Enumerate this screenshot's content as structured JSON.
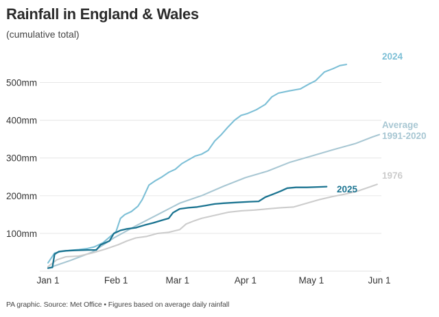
{
  "chart_data": {
    "type": "line",
    "title": "Rainfall in England & Wales",
    "subtitle": "(cumulative total)",
    "source": "PA graphic. Source: Met Office • Figures based on average daily rainfall",
    "x_ticks": [
      "Jan 1",
      "Feb 1",
      "Mar 1",
      "Apr 1",
      "May 1",
      "Jun 1"
    ],
    "y_ticks": [
      "100mm",
      "200mm",
      "300mm",
      "400mm",
      "500mm"
    ],
    "y_tick_values": [
      100,
      200,
      300,
      400,
      500
    ],
    "xlim_days": [
      0,
      151
    ],
    "ylim": [
      0,
      550
    ],
    "grid": true,
    "series": [
      {
        "name": "2024",
        "color": "#7cbfd6",
        "label_lines": [
          "2024"
        ],
        "points": [
          [
            0,
            22
          ],
          [
            3,
            48
          ],
          [
            6,
            52
          ],
          [
            10,
            55
          ],
          [
            14,
            57
          ],
          [
            18,
            60
          ],
          [
            21,
            64
          ],
          [
            25,
            75
          ],
          [
            28,
            90
          ],
          [
            31,
            105
          ],
          [
            33,
            140
          ],
          [
            35,
            150
          ],
          [
            38,
            158
          ],
          [
            41,
            172
          ],
          [
            43,
            190
          ],
          [
            46,
            228
          ],
          [
            49,
            240
          ],
          [
            52,
            250
          ],
          [
            55,
            262
          ],
          [
            58,
            270
          ],
          [
            61,
            285
          ],
          [
            64,
            295
          ],
          [
            67,
            305
          ],
          [
            70,
            310
          ],
          [
            73,
            320
          ],
          [
            76,
            345
          ],
          [
            79,
            362
          ],
          [
            82,
            382
          ],
          [
            85,
            400
          ],
          [
            88,
            413
          ],
          [
            91,
            418
          ],
          [
            95,
            428
          ],
          [
            99,
            442
          ],
          [
            102,
            462
          ],
          [
            105,
            472
          ],
          [
            110,
            478
          ],
          [
            115,
            483
          ],
          [
            119,
            496
          ],
          [
            122,
            505
          ],
          [
            126,
            528
          ],
          [
            130,
            537
          ],
          [
            133,
            545
          ],
          [
            136,
            548
          ]
        ],
        "end_value": 548
      },
      {
        "name": "Average 1991-2020",
        "color": "#a8c7d3",
        "label_lines": [
          "Average",
          "1991-2020"
        ],
        "points": [
          [
            0,
            8
          ],
          [
            10,
            28
          ],
          [
            20,
            50
          ],
          [
            30,
            88
          ],
          [
            40,
            120
          ],
          [
            50,
            150
          ],
          [
            60,
            180
          ],
          [
            70,
            200
          ],
          [
            80,
            225
          ],
          [
            90,
            248
          ],
          [
            100,
            265
          ],
          [
            110,
            288
          ],
          [
            120,
            305
          ],
          [
            130,
            322
          ],
          [
            140,
            338
          ],
          [
            148,
            356
          ],
          [
            151,
            362
          ]
        ],
        "end_value": 362
      },
      {
        "name": "1976",
        "color": "#cccccc",
        "label_lines": [
          "1976"
        ],
        "points": [
          [
            0,
            12
          ],
          [
            4,
            30
          ],
          [
            8,
            38
          ],
          [
            14,
            40
          ],
          [
            20,
            48
          ],
          [
            26,
            58
          ],
          [
            32,
            70
          ],
          [
            36,
            80
          ],
          [
            40,
            88
          ],
          [
            45,
            92
          ],
          [
            50,
            100
          ],
          [
            55,
            103
          ],
          [
            60,
            110
          ],
          [
            63,
            125
          ],
          [
            66,
            132
          ],
          [
            70,
            140
          ],
          [
            76,
            148
          ],
          [
            82,
            156
          ],
          [
            88,
            160
          ],
          [
            94,
            162
          ],
          [
            100,
            165
          ],
          [
            106,
            168
          ],
          [
            112,
            170
          ],
          [
            118,
            180
          ],
          [
            124,
            190
          ],
          [
            130,
            198
          ],
          [
            136,
            205
          ],
          [
            141,
            212
          ],
          [
            146,
            222
          ],
          [
            150,
            230
          ]
        ],
        "end_value": 230
      },
      {
        "name": "2025",
        "color": "#1a7390",
        "label_lines": [
          "2025"
        ],
        "points": [
          [
            0,
            8
          ],
          [
            2,
            10
          ],
          [
            3,
            45
          ],
          [
            5,
            52
          ],
          [
            8,
            54
          ],
          [
            12,
            55
          ],
          [
            18,
            56
          ],
          [
            22,
            56
          ],
          [
            24,
            70
          ],
          [
            28,
            80
          ],
          [
            30,
            100
          ],
          [
            33,
            108
          ],
          [
            36,
            112
          ],
          [
            40,
            115
          ],
          [
            44,
            122
          ],
          [
            48,
            128
          ],
          [
            52,
            135
          ],
          [
            55,
            140
          ],
          [
            57,
            155
          ],
          [
            60,
            165
          ],
          [
            64,
            168
          ],
          [
            68,
            170
          ],
          [
            72,
            174
          ],
          [
            76,
            178
          ],
          [
            80,
            180
          ],
          [
            86,
            182
          ],
          [
            92,
            184
          ],
          [
            96,
            185
          ],
          [
            99,
            196
          ],
          [
            103,
            205
          ],
          [
            106,
            212
          ],
          [
            109,
            220
          ],
          [
            113,
            222
          ],
          [
            118,
            222
          ],
          [
            123,
            223
          ],
          [
            127,
            224
          ]
        ],
        "end_value": 224
      }
    ]
  }
}
